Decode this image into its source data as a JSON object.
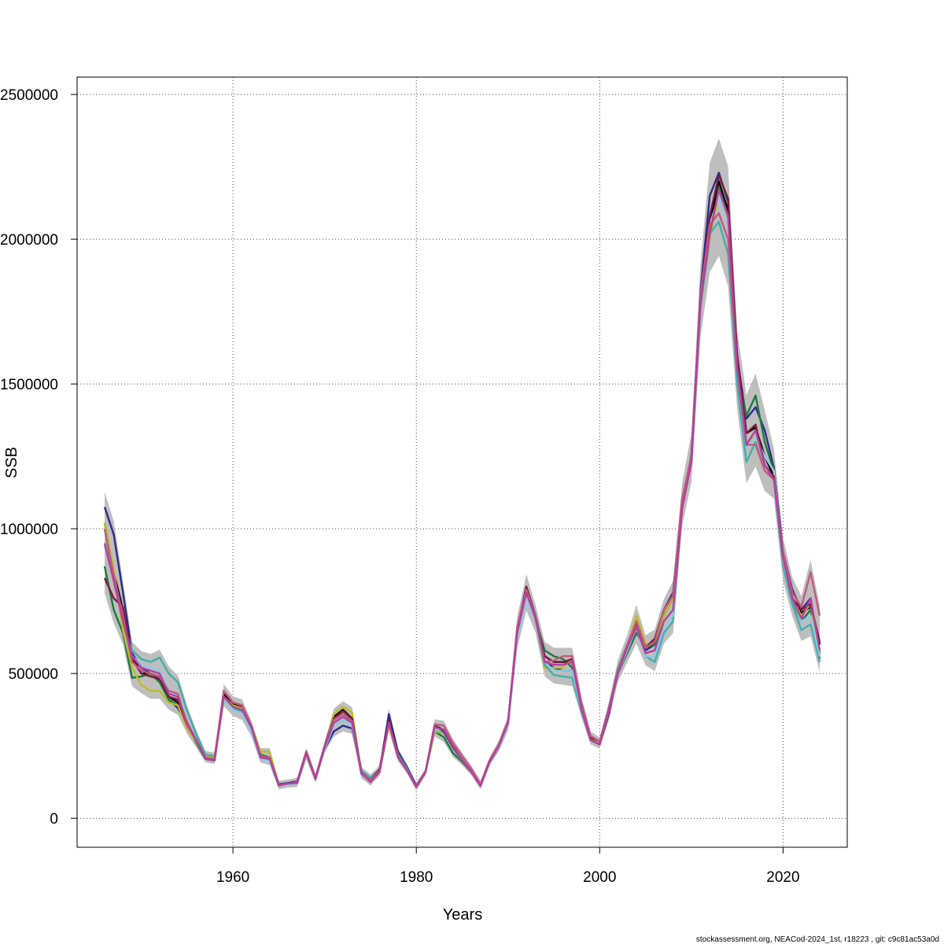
{
  "chart_data": {
    "type": "line",
    "title": "",
    "xlabel": "Years",
    "ylabel": "SSB",
    "xlim": [
      1943,
      2027
    ],
    "ylim": [
      -100000,
      2560000
    ],
    "grid": true,
    "legend": "none",
    "x_ticks": [
      1960,
      1980,
      2000,
      2020
    ],
    "x_tick_labels": [
      "1960",
      "1980",
      "2000",
      "2020"
    ],
    "y_ticks": [
      0,
      500000,
      1000000,
      1500000,
      2000000,
      2500000
    ],
    "y_tick_labels": [
      "0",
      "500000",
      "1000000",
      "1500000",
      "2000000",
      "2500000"
    ],
    "x": [
      1946,
      1947,
      1948,
      1949,
      1950,
      1951,
      1952,
      1953,
      1954,
      1955,
      1956,
      1957,
      1958,
      1959,
      1960,
      1961,
      1962,
      1963,
      1964,
      1965,
      1966,
      1967,
      1968,
      1969,
      1970,
      1971,
      1972,
      1973,
      1974,
      1975,
      1976,
      1977,
      1978,
      1979,
      1980,
      1981,
      1982,
      1983,
      1984,
      1985,
      1986,
      1987,
      1988,
      1989,
      1990,
      1991,
      1992,
      1993,
      1994,
      1995,
      1996,
      1997,
      1998,
      1999,
      2000,
      2001,
      2002,
      2003,
      2004,
      2005,
      2006,
      2007,
      2008,
      2009,
      2010,
      2011,
      2012,
      2013,
      2014,
      2015,
      2016,
      2017,
      2018,
      2019,
      2020,
      2021,
      2022,
      2023,
      2024
    ],
    "series": [
      {
        "color": "#000000",
        "values": [
          1020000,
          850000,
          720000,
          560000,
          500000,
          500000,
          490000,
          420000,
          400000,
          320000,
          270000,
          205000,
          200000,
          430000,
          395000,
          385000,
          320000,
          215000,
          210000,
          115000,
          120000,
          125000,
          230000,
          140000,
          250000,
          350000,
          375000,
          345000,
          165000,
          135000,
          170000,
          340000,
          220000,
          170000,
          110000,
          160000,
          320000,
          305000,
          250000,
          200000,
          165000,
          115000,
          200000,
          250000,
          330000,
          650000,
          800000,
          700000,
          560000,
          540000,
          540000,
          540000,
          390000,
          280000,
          260000,
          380000,
          510000,
          590000,
          680000,
          590000,
          620000,
          700000,
          760000,
          1100000,
          1250000,
          1800000,
          2050000,
          2200000,
          2100000,
          1600000,
          1330000,
          1350000,
          1250000,
          1180000,
          900000,
          760000,
          710000,
          730000,
          600000
        ]
      },
      {
        "color": "#2e2c8c",
        "values": [
          1075000,
          980000,
          780000,
          570000,
          520000,
          500000,
          480000,
          410000,
          380000,
          330000,
          270000,
          210000,
          205000,
          420000,
          380000,
          370000,
          310000,
          210000,
          205000,
          118000,
          122000,
          128000,
          225000,
          140000,
          240000,
          300000,
          320000,
          310000,
          160000,
          130000,
          165000,
          360000,
          230000,
          175000,
          112000,
          160000,
          315000,
          300000,
          245000,
          200000,
          160000,
          115000,
          195000,
          245000,
          325000,
          640000,
          790000,
          690000,
          540000,
          520000,
          510000,
          510000,
          380000,
          270000,
          255000,
          360000,
          510000,
          580000,
          670000,
          580000,
          600000,
          720000,
          780000,
          1090000,
          1230000,
          1820000,
          2150000,
          2230000,
          2130000,
          1590000,
          1380000,
          1420000,
          1340000,
          1210000,
          920000,
          790000,
          720000,
          760000,
          570000
        ]
      },
      {
        "color": "#1b7a3e",
        "values": [
          870000,
          720000,
          640000,
          485000,
          490000,
          500000,
          470000,
          410000,
          390000,
          320000,
          260000,
          205000,
          200000,
          440000,
          400000,
          390000,
          320000,
          220000,
          210000,
          115000,
          118000,
          125000,
          220000,
          140000,
          245000,
          340000,
          360000,
          340000,
          160000,
          130000,
          165000,
          330000,
          210000,
          165000,
          110000,
          160000,
          300000,
          280000,
          225000,
          195000,
          160000,
          115000,
          195000,
          245000,
          325000,
          640000,
          780000,
          690000,
          580000,
          560000,
          550000,
          520000,
          380000,
          275000,
          255000,
          370000,
          500000,
          570000,
          640000,
          590000,
          600000,
          700000,
          760000,
          1080000,
          1240000,
          1780000,
          2000000,
          2180000,
          2080000,
          1550000,
          1390000,
          1460000,
          1300000,
          1200000,
          880000,
          750000,
          680000,
          720000,
          550000
        ]
      },
      {
        "color": "#bcbd22",
        "values": [
          1020000,
          860000,
          650000,
          520000,
          460000,
          440000,
          440000,
          400000,
          390000,
          310000,
          265000,
          210000,
          215000,
          420000,
          390000,
          380000,
          320000,
          230000,
          230000,
          112000,
          118000,
          120000,
          215000,
          140000,
          240000,
          360000,
          385000,
          365000,
          160000,
          130000,
          165000,
          320000,
          210000,
          165000,
          108000,
          160000,
          300000,
          295000,
          240000,
          200000,
          160000,
          115000,
          200000,
          255000,
          335000,
          620000,
          770000,
          680000,
          520000,
          520000,
          520000,
          550000,
          380000,
          270000,
          260000,
          370000,
          500000,
          590000,
          700000,
          600000,
          610000,
          700000,
          760000,
          1100000,
          1250000,
          1800000,
          2000000,
          2160000,
          2060000,
          1560000,
          1300000,
          1320000,
          1250000,
          1200000,
          890000,
          760000,
          700000,
          740000,
          560000
        ]
      },
      {
        "color": "#3fb0a8",
        "values": [
          1000000,
          820000,
          690000,
          580000,
          550000,
          540000,
          555000,
          500000,
          470000,
          370000,
          290000,
          220000,
          215000,
          410000,
          380000,
          370000,
          310000,
          215000,
          205000,
          112000,
          118000,
          120000,
          220000,
          135000,
          240000,
          320000,
          340000,
          320000,
          165000,
          140000,
          170000,
          330000,
          220000,
          170000,
          108000,
          160000,
          310000,
          295000,
          240000,
          210000,
          170000,
          118000,
          195000,
          250000,
          330000,
          630000,
          770000,
          680000,
          530000,
          495000,
          490000,
          485000,
          370000,
          270000,
          255000,
          380000,
          520000,
          600000,
          660000,
          560000,
          540000,
          640000,
          680000,
          1080000,
          1260000,
          1760000,
          2020000,
          2060000,
          1950000,
          1500000,
          1230000,
          1300000,
          1200000,
          1170000,
          870000,
          740000,
          650000,
          670000,
          540000
        ]
      },
      {
        "color": "#8ecae6",
        "values": [
          940000,
          830000,
          700000,
          560000,
          530000,
          520000,
          510000,
          440000,
          420000,
          330000,
          270000,
          210000,
          205000,
          410000,
          375000,
          360000,
          300000,
          205000,
          195000,
          112000,
          118000,
          120000,
          220000,
          135000,
          240000,
          320000,
          340000,
          320000,
          150000,
          130000,
          165000,
          330000,
          210000,
          165000,
          108000,
          160000,
          310000,
          300000,
          240000,
          200000,
          160000,
          115000,
          195000,
          245000,
          320000,
          620000,
          760000,
          680000,
          540000,
          510000,
          510000,
          510000,
          380000,
          270000,
          255000,
          370000,
          500000,
          580000,
          660000,
          560000,
          560000,
          660000,
          700000,
          1080000,
          1240000,
          1780000,
          2050000,
          2150000,
          2050000,
          1550000,
          1280000,
          1320000,
          1250000,
          1200000,
          890000,
          760000,
          680000,
          700000,
          560000
        ]
      },
      {
        "color": "#7b1c3a",
        "values": [
          830000,
          760000,
          730000,
          550000,
          500000,
          490000,
          480000,
          420000,
          410000,
          320000,
          270000,
          210000,
          200000,
          440000,
          400000,
          390000,
          320000,
          215000,
          210000,
          115000,
          120000,
          125000,
          230000,
          140000,
          250000,
          345000,
          370000,
          345000,
          160000,
          130000,
          170000,
          340000,
          215000,
          165000,
          110000,
          160000,
          320000,
          300000,
          245000,
          200000,
          160000,
          115000,
          200000,
          250000,
          330000,
          650000,
          800000,
          690000,
          560000,
          540000,
          540000,
          550000,
          390000,
          280000,
          265000,
          380000,
          510000,
          590000,
          680000,
          590000,
          620000,
          720000,
          770000,
          1100000,
          1250000,
          1800000,
          2080000,
          2220000,
          2140000,
          1600000,
          1330000,
          1360000,
          1220000,
          1180000,
          900000,
          760000,
          720000,
          740000,
          610000
        ]
      },
      {
        "color": "#c55a7a",
        "values": [
          1000000,
          840000,
          700000,
          540000,
          510000,
          500000,
          490000,
          440000,
          430000,
          320000,
          270000,
          210000,
          205000,
          440000,
          400000,
          390000,
          320000,
          215000,
          210000,
          115000,
          120000,
          125000,
          230000,
          140000,
          250000,
          340000,
          360000,
          335000,
          160000,
          130000,
          165000,
          330000,
          215000,
          165000,
          110000,
          160000,
          325000,
          320000,
          260000,
          215000,
          170000,
          118000,
          200000,
          255000,
          335000,
          660000,
          790000,
          700000,
          540000,
          545000,
          560000,
          560000,
          400000,
          285000,
          265000,
          380000,
          510000,
          600000,
          680000,
          590000,
          610000,
          720000,
          770000,
          1100000,
          1250000,
          1810000,
          2050000,
          2090000,
          2000000,
          1550000,
          1290000,
          1290000,
          1200000,
          1170000,
          920000,
          780000,
          730000,
          850000,
          700000
        ]
      },
      {
        "color": "#b43f9e",
        "values": [
          950000,
          820000,
          680000,
          560000,
          520000,
          510000,
          500000,
          430000,
          420000,
          330000,
          270000,
          205000,
          200000,
          420000,
          385000,
          375000,
          315000,
          210000,
          205000,
          113000,
          120000,
          122000,
          225000,
          135000,
          245000,
          330000,
          350000,
          330000,
          155000,
          125000,
          160000,
          330000,
          210000,
          165000,
          108000,
          160000,
          315000,
          305000,
          250000,
          200000,
          160000,
          112000,
          195000,
          250000,
          330000,
          640000,
          780000,
          690000,
          540000,
          530000,
          530000,
          540000,
          380000,
          270000,
          255000,
          370000,
          500000,
          590000,
          660000,
          570000,
          580000,
          680000,
          720000,
          1070000,
          1230000,
          1780000,
          2020000,
          2170000,
          2080000,
          1560000,
          1290000,
          1340000,
          1220000,
          1170000,
          900000,
          760000,
          690000,
          760000,
          580000
        ]
      }
    ]
  },
  "footer": {
    "caption": "stockassessment.org, NEACod-2024_1st, r18223 , git: c9c81ac53a0d"
  }
}
